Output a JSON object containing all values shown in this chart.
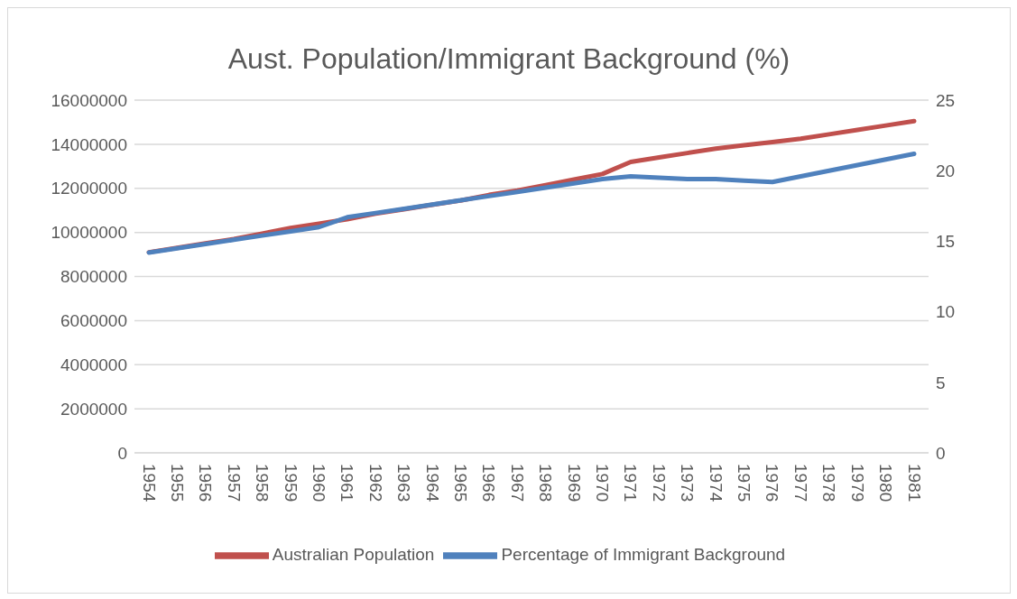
{
  "chart_data": {
    "type": "line",
    "title": "Aust. Population/Immigrant Background (%)",
    "categories": [
      "1954",
      "1955",
      "1956",
      "1957",
      "1958",
      "1959",
      "1960",
      "1961",
      "1962",
      "1963",
      "1964",
      "1965",
      "1966",
      "1967",
      "1968",
      "1969",
      "1970",
      "1971",
      "1972",
      "1973",
      "1974",
      "1975",
      "1976",
      "1977",
      "1978",
      "1979",
      "1980",
      "1981"
    ],
    "series": [
      {
        "name": "Australian Population",
        "color": "#c0504d",
        "values": [
          9100000,
          9300000,
          9500000,
          9700000,
          9950000,
          10200000,
          10400000,
          10600000,
          10850000,
          11050000,
          11250000,
          11450000,
          11700000,
          11900000,
          12150000,
          12400000,
          12650000,
          13200000,
          13400000,
          13600000,
          13800000,
          13950000,
          14100000,
          14250000,
          14450000,
          14650000,
          14850000,
          15050000
        ]
      },
      {
        "name": "Percentage of Immigrant Background",
        "color": "#4f81bd",
        "axis": "y2",
        "values": [
          14.2,
          14.5,
          14.8,
          15.1,
          15.4,
          15.7,
          16.0,
          16.7,
          17.0,
          17.3,
          17.6,
          17.9,
          18.2,
          18.5,
          18.8,
          19.1,
          19.4,
          19.6,
          19.5,
          19.4,
          19.4,
          19.3,
          19.2,
          19.6,
          20.0,
          20.4,
          20.8,
          21.2
        ]
      }
    ],
    "ylim": [
      0,
      16000000
    ],
    "yticks": [
      0,
      2000000,
      4000000,
      6000000,
      8000000,
      10000000,
      12000000,
      14000000,
      16000000
    ],
    "y2lim": [
      0,
      25
    ],
    "y2ticks": [
      0,
      5,
      10,
      15,
      20,
      25
    ],
    "grid": "y",
    "legend": "bottom",
    "marker": "none",
    "line_style": "solid"
  }
}
